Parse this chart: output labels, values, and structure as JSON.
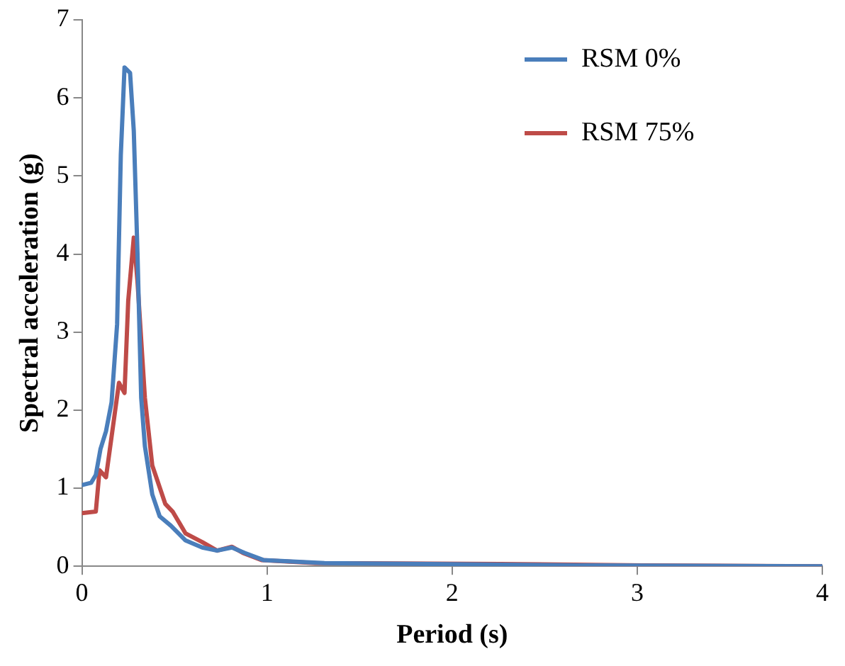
{
  "chart_data": {
    "type": "line",
    "xlabel": "Period (s)",
    "ylabel": "Spectral acceleration (g)",
    "xlim": [
      0,
      4
    ],
    "xticks": [
      0,
      1,
      2,
      3,
      4
    ],
    "ylim": [
      0,
      7
    ],
    "yticks": [
      0,
      1,
      2,
      3,
      4,
      5,
      6,
      7
    ],
    "grid": false,
    "legend": "top right",
    "marker": "none",
    "line_style": "solid",
    "series": [
      {
        "name": "RSM 0%",
        "color": "#4a7ebb",
        "x": [
          0,
          0.05,
          0.075,
          0.1,
          0.13,
          0.16,
          0.19,
          0.21,
          0.23,
          0.26,
          0.28,
          0.3,
          0.32,
          0.34,
          0.38,
          0.42,
          0.48,
          0.56,
          0.65,
          0.73,
          0.81,
          0.88,
          0.98,
          1.31,
          1.87,
          2.7,
          4
        ],
        "values": [
          1.04,
          1.07,
          1.17,
          1.5,
          1.73,
          2.1,
          3.1,
          5.27,
          6.39,
          6.32,
          5.58,
          4.02,
          2.16,
          1.54,
          0.92,
          0.64,
          0.52,
          0.33,
          0.24,
          0.2,
          0.24,
          0.17,
          0.08,
          0.04,
          0.03,
          0.01,
          0
        ]
      },
      {
        "name": "RSM 75%",
        "color": "#be4b48",
        "x": [
          0,
          0.075,
          0.095,
          0.13,
          0.2,
          0.23,
          0.25,
          0.28,
          0.3,
          0.34,
          0.38,
          0.45,
          0.49,
          0.56,
          0.65,
          0.73,
          0.81,
          0.87,
          0.97,
          1.26,
          2.26,
          3.03,
          4
        ],
        "values": [
          0.68,
          0.7,
          1.23,
          1.14,
          2.35,
          2.22,
          3.4,
          4.21,
          3.65,
          2.16,
          1.29,
          0.8,
          0.7,
          0.42,
          0.31,
          0.2,
          0.25,
          0.17,
          0.08,
          0.04,
          0.03,
          0.01,
          0
        ]
      }
    ]
  }
}
